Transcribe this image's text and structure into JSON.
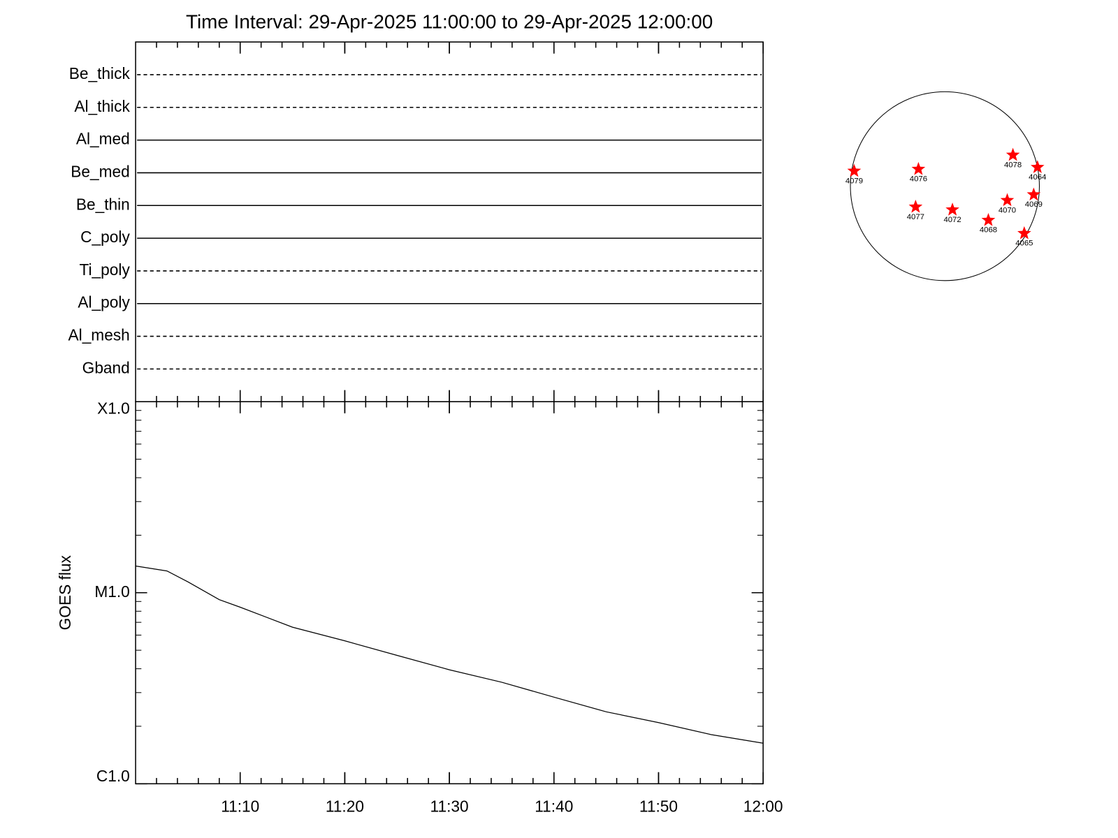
{
  "chart_data": [
    {
      "type": "timeline",
      "title": "Time Interval: 29-Apr-2025 11:00:00 to 29-Apr-2025 12:00:00",
      "categories": [
        "Be_thick",
        "Al_thick",
        "Al_med",
        "Be_med",
        "Be_thin",
        "C_poly",
        "Ti_poly",
        "Al_poly",
        "Al_mesh",
        "Gband"
      ],
      "line_styles": [
        "dashed",
        "dashed",
        "solid",
        "solid",
        "solid",
        "solid",
        "dashed",
        "solid",
        "dashed",
        "dashed"
      ],
      "color": "#000000"
    },
    {
      "type": "line",
      "y_label": "GOES flux",
      "log_y": true,
      "x": [
        "11:00",
        "11:03",
        "11:05",
        "11:08",
        "11:10",
        "11:15",
        "11:20",
        "11:25",
        "11:30",
        "11:35",
        "11:40",
        "11:45",
        "11:50",
        "11:55",
        "12:00"
      ],
      "series": [
        {
          "name": "GOES",
          "color": "#000000",
          "values": [
            1.38e-05,
            1.3e-05,
            1.14e-05,
            9.2e-06,
            8.4e-06,
            6.6e-06,
            5.6e-06,
            4.7e-06,
            3.95e-06,
            3.4e-06,
            2.84e-06,
            2.38e-06,
            2.09e-06,
            1.81e-06,
            1.63e-06
          ]
        }
      ],
      "xlim": [
        "11:00",
        "12:00"
      ],
      "xticks": [
        "11:10",
        "11:20",
        "11:30",
        "11:40",
        "11:50",
        "12:00"
      ],
      "ylim": [
        1e-06,
        0.0001
      ],
      "yticks": [
        {
          "value": 1e-06,
          "label": "C1.0"
        },
        {
          "value": 1e-05,
          "label": "M1.0"
        },
        {
          "value": 0.0001,
          "label": "X1.0"
        }
      ]
    },
    {
      "type": "scatter",
      "labels": [
        "4079",
        "4076",
        "4078",
        "4064",
        "4070",
        "4069",
        "4077",
        "4072",
        "4068",
        "4065"
      ],
      "x": [
        -0.96,
        -0.28,
        0.72,
        0.98,
        0.66,
        0.94,
        -0.31,
        0.08,
        0.46,
        0.84
      ],
      "values": [
        0.16,
        0.18,
        0.33,
        0.2,
        -0.15,
        -0.09,
        -0.22,
        -0.25,
        -0.36,
        -0.5
      ],
      "xlim": [
        -1,
        1
      ],
      "ylim": [
        -1,
        1
      ],
      "color": "#ff0000"
    }
  ]
}
